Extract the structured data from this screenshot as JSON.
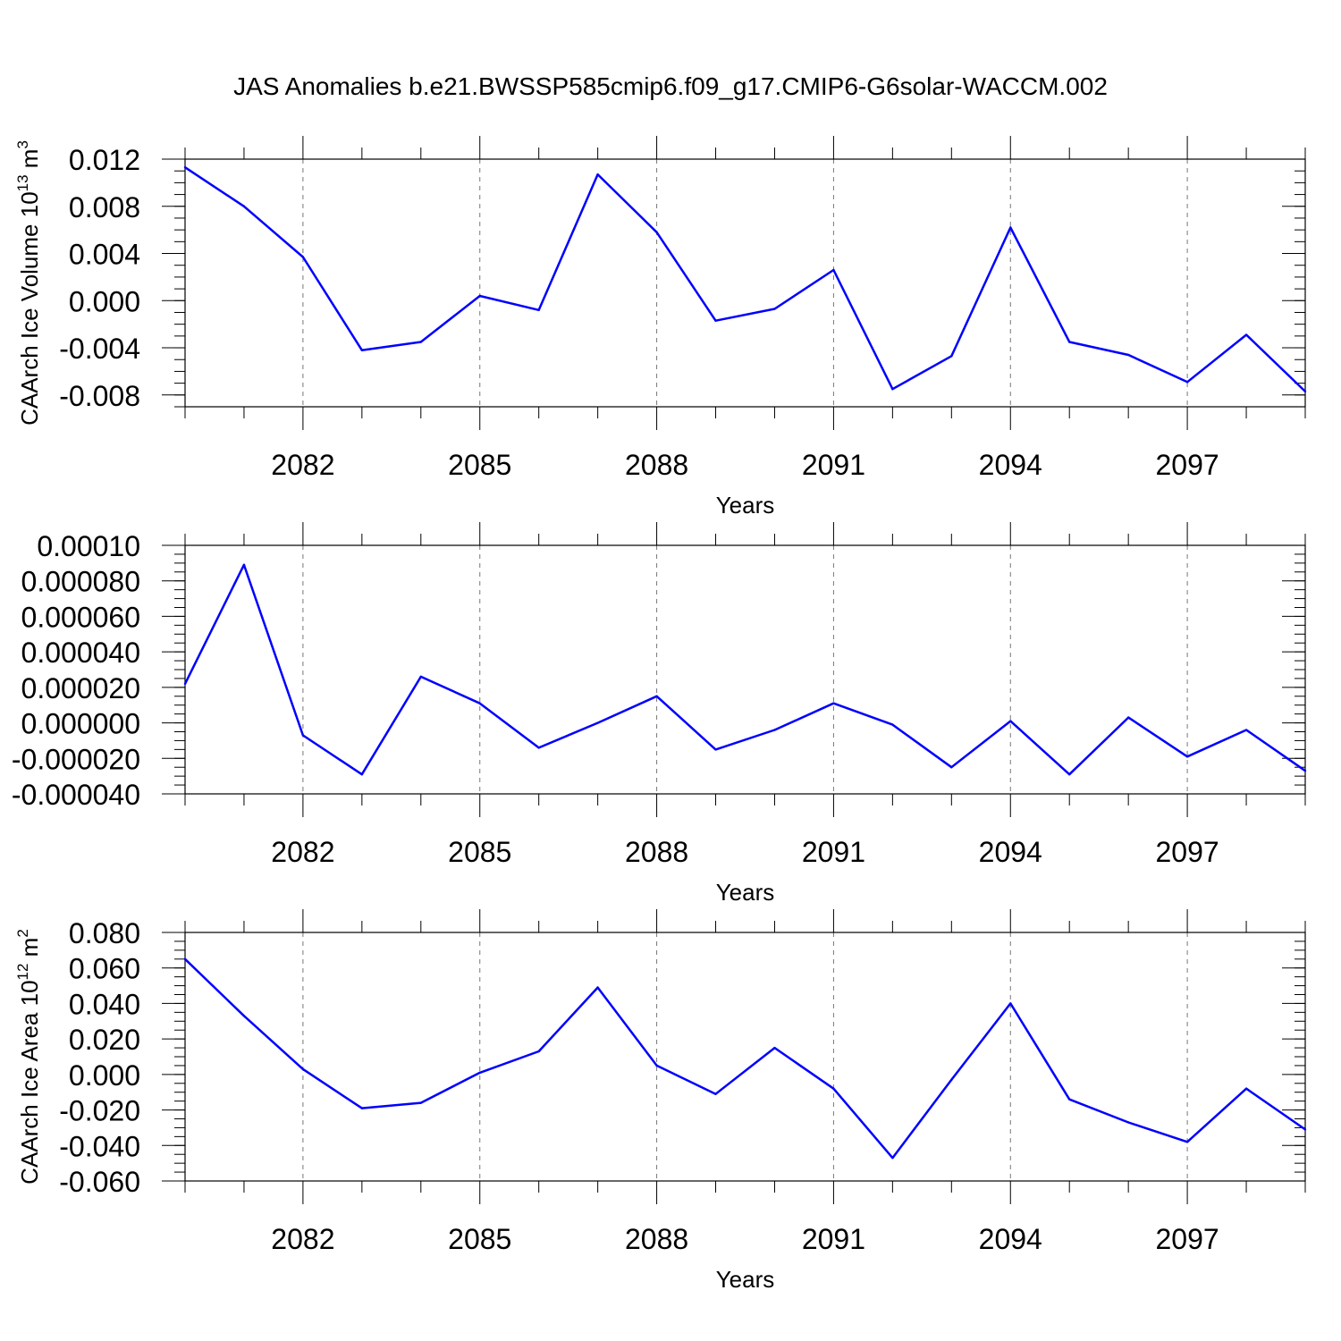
{
  "title": "JAS Anomalies b.e21.BWSSP585cmip6.f09_g17.CMIP6-G6solar-WACCM.002",
  "line_color": "#0000ff",
  "chart_data": [
    {
      "type": "line",
      "ylabel_main": "CAArch Ice Volume 10",
      "ylabel_exp": "13",
      "ylabel_unit": " m",
      "ylabel_unit_exp": "3",
      "xlabel": "Years",
      "xlim": [
        2080,
        2099
      ],
      "ylim": [
        -0.009,
        0.012
      ],
      "y_ticks": [
        -0.008,
        -0.004,
        0.0,
        0.004,
        0.008,
        0.012
      ],
      "y_tick_labels": [
        "-0.008",
        "-0.004",
        "0.000",
        "0.004",
        "0.008",
        "0.012"
      ],
      "y_minor_step": 0.001,
      "x_ticks": [
        2082,
        2085,
        2088,
        2091,
        2094,
        2097
      ],
      "x_tick_labels": [
        "2082",
        "2085",
        "2088",
        "2091",
        "2094",
        "2097"
      ],
      "x": [
        2080,
        2081,
        2082,
        2083,
        2084,
        2085,
        2086,
        2087,
        2088,
        2089,
        2090,
        2091,
        2092,
        2093,
        2094,
        2095,
        2096,
        2097,
        2098,
        2099
      ],
      "values": [
        0.0113,
        0.008,
        0.0037,
        -0.0042,
        -0.0035,
        0.0004,
        -0.0008,
        0.0107,
        0.0058,
        -0.0017,
        -0.0007,
        0.0026,
        -0.0075,
        -0.0047,
        0.0062,
        -0.0035,
        -0.0046,
        -0.0069,
        -0.0029,
        -0.0077
      ]
    },
    {
      "type": "line",
      "ylabel_main": "",
      "ylabel_exp": "",
      "ylabel_unit": "",
      "ylabel_unit_exp": "",
      "xlabel": "Years",
      "xlim": [
        2080,
        2099
      ],
      "ylim": [
        -4e-05,
        0.0001
      ],
      "y_ticks": [
        -4e-05,
        -2e-05,
        0.0,
        2e-05,
        4e-05,
        6e-05,
        8e-05,
        0.0001
      ],
      "y_tick_labels": [
        "-0.000040",
        "-0.000020",
        "0.000000",
        "0.000020",
        "0.000040",
        "0.000060",
        "0.000080",
        "0.00010"
      ],
      "y_minor_step": 5e-06,
      "x_ticks": [
        2082,
        2085,
        2088,
        2091,
        2094,
        2097
      ],
      "x_tick_labels": [
        "2082",
        "2085",
        "2088",
        "2091",
        "2094",
        "2097"
      ],
      "x": [
        2080,
        2081,
        2082,
        2083,
        2084,
        2085,
        2086,
        2087,
        2088,
        2089,
        2090,
        2091,
        2092,
        2093,
        2094,
        2095,
        2096,
        2097,
        2098,
        2099
      ],
      "values": [
        2.2e-05,
        8.9e-05,
        -7e-06,
        -2.9e-05,
        2.6e-05,
        1.1e-05,
        -1.4e-05,
        0.0,
        1.5e-05,
        -1.5e-05,
        -4e-06,
        1.1e-05,
        -1e-06,
        -2.5e-05,
        1e-06,
        -2.9e-05,
        3e-06,
        -1.9e-05,
        -4e-06,
        -2.7e-05
      ]
    },
    {
      "type": "line",
      "ylabel_main": "CAArch Ice Area 10",
      "ylabel_exp": "12",
      "ylabel_unit": " m",
      "ylabel_unit_exp": "2",
      "xlabel": "Years",
      "xlim": [
        2080,
        2099
      ],
      "ylim": [
        -0.06,
        0.08
      ],
      "y_ticks": [
        -0.06,
        -0.04,
        -0.02,
        0.0,
        0.02,
        0.04,
        0.06,
        0.08
      ],
      "y_tick_labels": [
        "-0.060",
        "-0.040",
        "-0.020",
        "0.000",
        "0.020",
        "0.040",
        "0.060",
        "0.080"
      ],
      "y_minor_step": 0.005,
      "x_ticks": [
        2082,
        2085,
        2088,
        2091,
        2094,
        2097
      ],
      "x_tick_labels": [
        "2082",
        "2085",
        "2088",
        "2091",
        "2094",
        "2097"
      ],
      "x": [
        2080,
        2081,
        2082,
        2083,
        2084,
        2085,
        2086,
        2087,
        2088,
        2089,
        2090,
        2091,
        2092,
        2093,
        2094,
        2095,
        2096,
        2097,
        2098,
        2099
      ],
      "values": [
        0.065,
        0.033,
        0.003,
        -0.019,
        -0.016,
        0.001,
        0.013,
        0.049,
        0.005,
        -0.011,
        0.015,
        -0.008,
        -0.047,
        -0.003,
        0.04,
        -0.014,
        -0.027,
        -0.038,
        -0.008,
        -0.031
      ]
    }
  ]
}
